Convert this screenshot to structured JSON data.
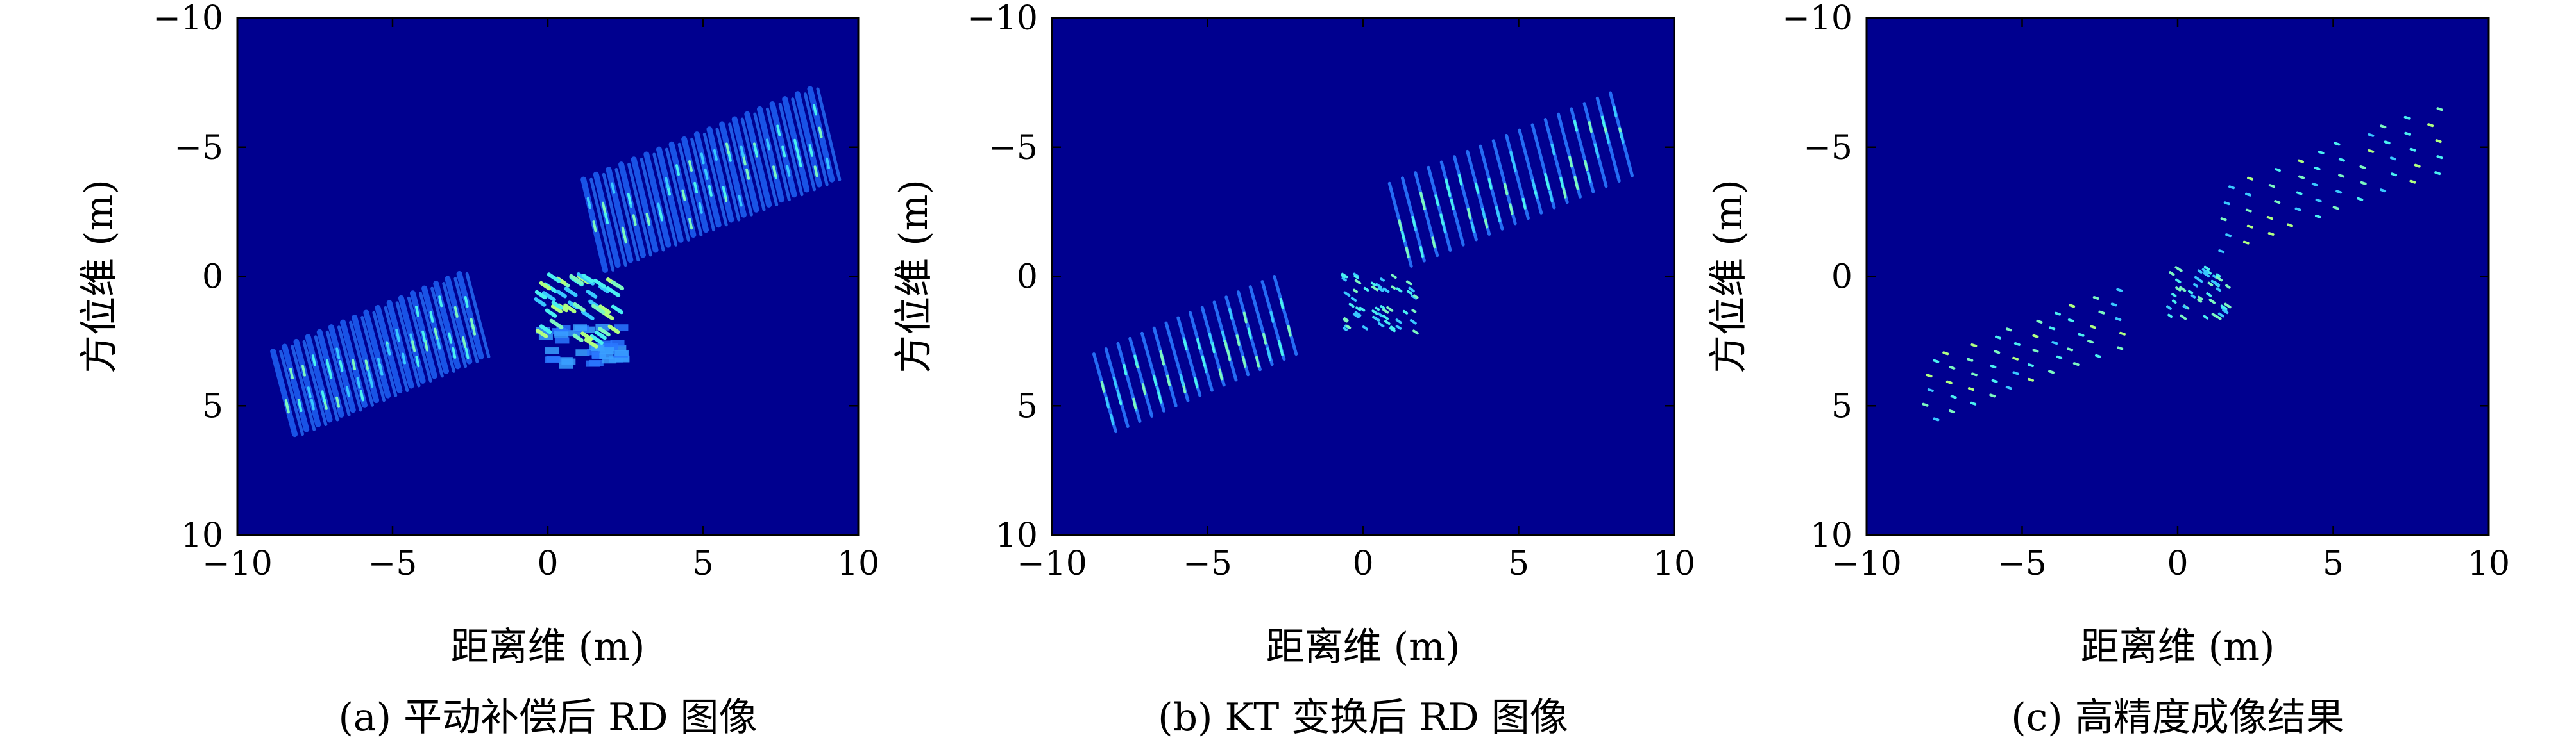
{
  "chart_data": [
    {
      "type": "heatmap",
      "subtitle": "(a) 平动补偿后 RD 图像",
      "xlabel": "距离维 (m)",
      "ylabel": "方位维 (m)",
      "xlim": [
        -10,
        10
      ],
      "ylim": [
        10,
        -10
      ],
      "xticks": [
        "−10",
        "−5",
        "0",
        "5",
        "10"
      ],
      "yticks": [
        "−10",
        "−5",
        "0",
        "5",
        "10"
      ],
      "colormap": "jet",
      "background_color": "#00008f",
      "features": {
        "streak_rows_left": {
          "x_from": -8.5,
          "x_to": -2.5,
          "y_from": 1.5,
          "y_to": 4.5,
          "streak_count": 17,
          "streak_length": 3.2
        },
        "streak_rows_right": {
          "x_from": 1.5,
          "x_to": 8.8,
          "y_from": -5.5,
          "y_to": -2.0,
          "streak_count": 19,
          "streak_length": 3.5
        },
        "center_cluster": {
          "x": 0.9,
          "y": 1.2,
          "spread": 1.3
        }
      }
    },
    {
      "type": "heatmap",
      "subtitle": "(b) KT 变换后 RD 图像",
      "xlabel": "距离维 (m)",
      "ylabel": "方位维 (m)",
      "xlim": [
        -10,
        10
      ],
      "ylim": [
        10,
        -10
      ],
      "xticks": [
        "−10",
        "−5",
        "0",
        "5",
        "10"
      ],
      "yticks": [
        "−10",
        "−5",
        "0",
        "5",
        "10"
      ],
      "colormap": "jet",
      "background_color": "#00008f",
      "features": {
        "streak_rows_left": {
          "x_from": -8.3,
          "x_to": -2.5,
          "y_from": 1.5,
          "y_to": 4.5,
          "streak_count": 16,
          "streak_length": 3.0
        },
        "streak_rows_right": {
          "x_from": 1.2,
          "x_to": 8.3,
          "y_from": -5.5,
          "y_to": -2.0,
          "streak_count": 18,
          "streak_length": 3.2
        },
        "center_cluster": {
          "x": 0.5,
          "y": 1.0,
          "spread": 1.2
        }
      }
    },
    {
      "type": "heatmap",
      "subtitle": "(c) 高精度成像结果",
      "xlabel": "距离维 (m)",
      "ylabel": "方位维 (m)",
      "xlim": [
        -10,
        10
      ],
      "ylim": [
        10,
        -10
      ],
      "xticks": [
        "−10",
        "−5",
        "0",
        "5",
        "10"
      ],
      "yticks": [
        "−10",
        "−5",
        "0",
        "5",
        "10"
      ],
      "colormap": "jet",
      "background_color": "#00008f",
      "features": {
        "dot_grid_left": {
          "x_from": -8.0,
          "x_to": -2.0,
          "y_from": 0.5,
          "y_to": 5.5,
          "columns": 10,
          "rows": 5
        },
        "dot_grid_right": {
          "x_from": 1.5,
          "x_to": 8.2,
          "y_from": -6.5,
          "y_to": -1.0,
          "columns": 10,
          "rows": 5
        },
        "center_cluster": {
          "x": 0.6,
          "y": 0.6,
          "spread": 1.0
        }
      }
    }
  ]
}
